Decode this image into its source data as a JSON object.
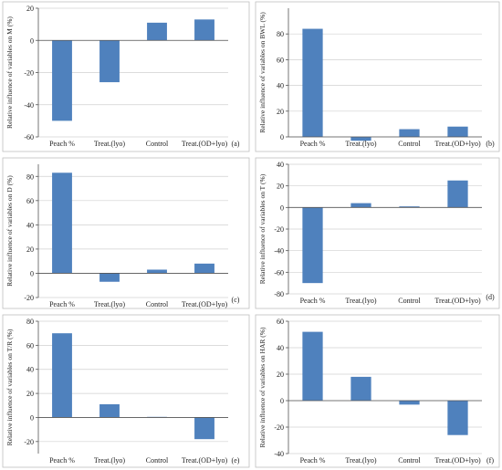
{
  "colors": {
    "bar": "#4f81bd",
    "grid": "#d0d0d0",
    "axis": "#555555",
    "border": "#bfbfbf",
    "text": "#222222"
  },
  "chart_data": [
    {
      "type": "bar",
      "panel_label": "(a)",
      "ylabel": "Relative influence of variables on M (%)",
      "categories": [
        "Peach %",
        "Treat.(lyo)",
        "Control",
        "Treat.(OD+lyo)"
      ],
      "values": [
        -50,
        -26,
        11,
        13
      ],
      "ylim": [
        -60,
        20
      ],
      "yticks": [
        -60,
        -40,
        -20,
        0,
        20
      ],
      "grid": true
    },
    {
      "type": "bar",
      "panel_label": "(b)",
      "ylabel": "Relative influence of variables on BWL (%)",
      "categories": [
        "Peach %",
        "Treat.(lyo)",
        "Control",
        "Treat.(OD+lyo)"
      ],
      "values": [
        84,
        -3,
        6,
        8
      ],
      "ylim": [
        0,
        100
      ],
      "yticks": [
        0,
        20,
        40,
        60,
        80
      ],
      "grid": true
    },
    {
      "type": "bar",
      "panel_label": "(c)",
      "ylabel": "Relative influence of variables on D (%)",
      "categories": [
        "Peach %",
        "Treat.(lyo)",
        "Control",
        "Treat.(OD+lyo)"
      ],
      "values": [
        83,
        -7,
        3,
        8
      ],
      "ylim": [
        -20,
        90
      ],
      "yticks": [
        -20,
        0,
        20,
        40,
        60,
        80
      ],
      "grid": true
    },
    {
      "type": "bar",
      "panel_label": "(d)",
      "ylabel": "Relative influence of variables on T (%)",
      "categories": [
        "Peach %",
        "Treat.(lyo)",
        "Control",
        "Treat.(OD+lyo)"
      ],
      "values": [
        -70,
        4,
        1,
        25
      ],
      "ylim": [
        -80,
        40
      ],
      "yticks": [
        -80,
        -60,
        -40,
        -20,
        0,
        20,
        40
      ],
      "grid": true
    },
    {
      "type": "bar",
      "panel_label": "(e)",
      "ylabel": "Relative influence of variables on T/R (%)",
      "categories": [
        "Peach %",
        "Treat.(lyo)",
        "Control",
        "Treat.(OD+lyo)"
      ],
      "values": [
        70,
        11,
        0.5,
        -18
      ],
      "ylim": [
        -30,
        80
      ],
      "yticks": [
        -20,
        0,
        20,
        40,
        60,
        80
      ],
      "grid": true
    },
    {
      "type": "bar",
      "panel_label": "(f)",
      "ylabel": "Relative influence of variables on HAR (%)",
      "categories": [
        "Peach %",
        "Treat.(lyo)",
        "Control",
        "Treat.(OD+lyo)"
      ],
      "values": [
        52,
        18,
        -3,
        -26
      ],
      "ylim": [
        -40,
        60
      ],
      "yticks": [
        -40,
        -20,
        0,
        20,
        40,
        60
      ],
      "grid": true
    }
  ]
}
